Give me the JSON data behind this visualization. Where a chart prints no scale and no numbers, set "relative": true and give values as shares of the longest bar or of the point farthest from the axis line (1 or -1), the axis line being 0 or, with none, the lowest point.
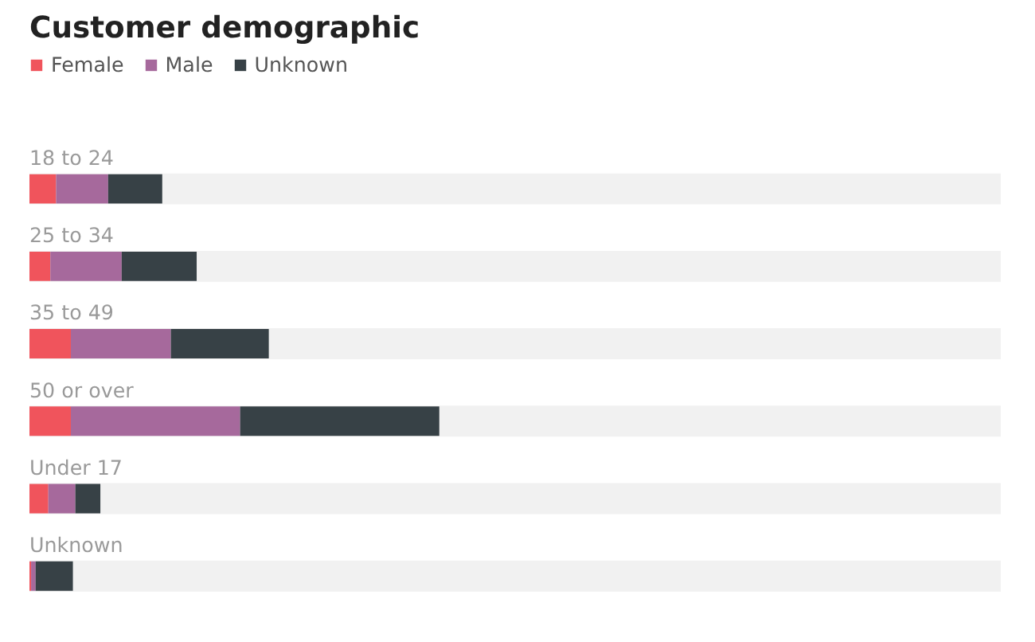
{
  "chart_data": {
    "type": "bar",
    "title": "Customer demographic",
    "orientation": "horizontal",
    "stacked": true,
    "relative": true,
    "legend": "top left",
    "grid": false,
    "categories": [
      "18 to 24",
      "25 to 34",
      "35 to 49",
      "50 or over",
      "Under 17",
      "Unknown"
    ],
    "series": [
      {
        "name": "Female",
        "color": "#f0545c",
        "values": [
          0.065,
          0.051,
          0.101,
          0.101,
          0.046,
          0.004
        ]
      },
      {
        "name": "Male",
        "color": "#a6699c",
        "values": [
          0.127,
          0.174,
          0.244,
          0.413,
          0.066,
          0.011
        ]
      },
      {
        "name": "Unknown",
        "color": "#374146",
        "values": [
          0.132,
          0.183,
          0.239,
          0.486,
          0.061,
          0.091
        ]
      }
    ]
  }
}
